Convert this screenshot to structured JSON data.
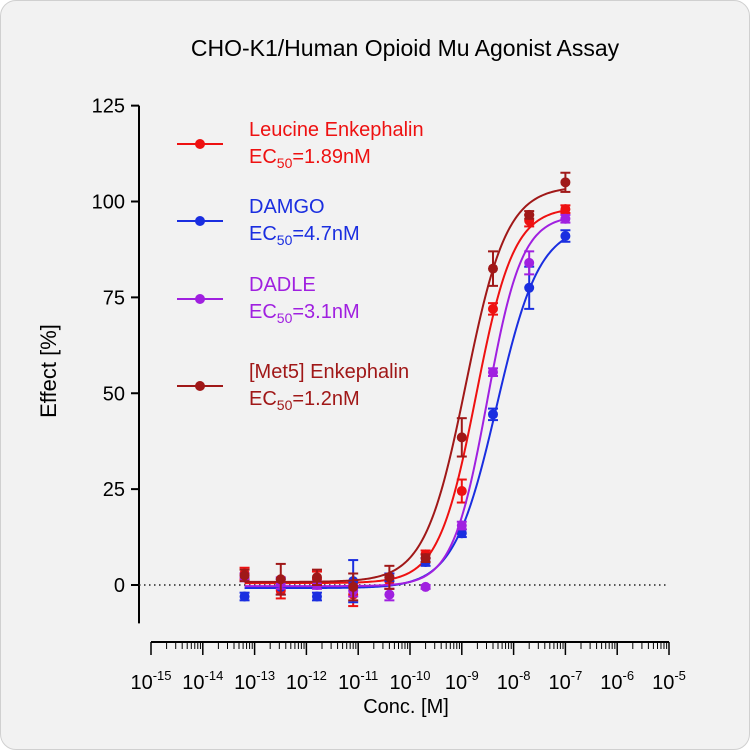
{
  "chart_data": {
    "type": "scatter",
    "title": "CHO-K1/Human Opioid Mu Agonist Assay",
    "xlabel": "Conc. [M]",
    "ylabel": "Effect  [%]",
    "x_scale": "log",
    "xlim": [
      1e-15,
      1e-05
    ],
    "ylim": [
      -10,
      125
    ],
    "y_ticks": [
      0,
      25,
      50,
      75,
      100,
      125
    ],
    "x_ticks": [
      {
        "base": "10",
        "exp": "-15",
        "value": 1e-15
      },
      {
        "base": "10",
        "exp": "-14",
        "value": 1e-14
      },
      {
        "base": "10",
        "exp": "-13",
        "value": 1e-13
      },
      {
        "base": "10",
        "exp": "-12",
        "value": 1e-12
      },
      {
        "base": "10",
        "exp": "-11",
        "value": 1e-11
      },
      {
        "base": "10",
        "exp": "-10",
        "value": 1e-10
      },
      {
        "base": "10",
        "exp": "-9",
        "value": 1e-09
      },
      {
        "base": "10",
        "exp": "-8",
        "value": 1e-08
      },
      {
        "base": "10",
        "exp": "-7",
        "value": 1e-07
      },
      {
        "base": "10",
        "exp": "-6",
        "value": 1e-06
      },
      {
        "base": "10",
        "exp": "-5",
        "value": 1e-05
      }
    ],
    "reference_line": {
      "y": 0,
      "style": "dotted"
    },
    "legend_position": "top-left",
    "grid": false,
    "series": [
      {
        "name": "Leucine Enkephalin",
        "ec50_prefix": "EC",
        "ec50_sub": "50",
        "ec50_value": "=1.89nM",
        "color": "#ee1111",
        "fit": {
          "bottom": 0.5,
          "top": 98.5,
          "ec50": 1.89e-09,
          "hill": 1.2
        },
        "points": [
          {
            "x": 6.4e-14,
            "y": 3.0,
            "err": 1.5
          },
          {
            "x": 3.2e-13,
            "y": -1.5,
            "err": 2.0
          },
          {
            "x": 1.6e-12,
            "y": 1.5,
            "err": 2.0
          },
          {
            "x": 8e-12,
            "y": -2.5,
            "err": 3.0
          },
          {
            "x": 4e-11,
            "y": 1.0,
            "err": 2.0
          },
          {
            "x": 2e-10,
            "y": 8.0,
            "err": 1.0
          },
          {
            "x": 1e-09,
            "y": 24.5,
            "err": 3.0
          },
          {
            "x": 4e-09,
            "y": 72.0,
            "err": 1.5
          },
          {
            "x": 2e-08,
            "y": 95.0,
            "err": 1.5
          },
          {
            "x": 1e-07,
            "y": 98.0,
            "err": 1.0
          }
        ]
      },
      {
        "name": "DAMGO",
        "ec50_prefix": "EC",
        "ec50_sub": "50",
        "ec50_value": "=4.7nM",
        "color": "#1a2ee0",
        "fit": {
          "bottom": -0.8,
          "top": 94.0,
          "ec50": 4.7e-09,
          "hill": 1.05
        },
        "points": [
          {
            "x": 6.4e-14,
            "y": -3.0,
            "err": 1.0
          },
          {
            "x": 3.2e-13,
            "y": -0.5,
            "err": 2.0
          },
          {
            "x": 1.6e-12,
            "y": -3.0,
            "err": 1.0
          },
          {
            "x": 8e-12,
            "y": 1.0,
            "err": 5.5
          },
          {
            "x": 4e-11,
            "y": 2.0,
            "err": 1.0
          },
          {
            "x": 2e-10,
            "y": 6.0,
            "err": 1.0
          },
          {
            "x": 1e-09,
            "y": 13.5,
            "err": 1.0
          },
          {
            "x": 4e-09,
            "y": 44.5,
            "err": 1.5
          },
          {
            "x": 2e-08,
            "y": 77.5,
            "err": 5.5
          },
          {
            "x": 1e-07,
            "y": 91.0,
            "err": 1.5
          }
        ]
      },
      {
        "name": "DADLE",
        "ec50_prefix": "EC",
        "ec50_sub": "50",
        "ec50_value": "=3.1nM",
        "color": "#a020e0",
        "fit": {
          "bottom": -0.3,
          "top": 96.5,
          "ec50": 3.1e-09,
          "hill": 1.3
        },
        "points": [
          {
            "x": 6.4e-14,
            "y": 2.0,
            "err": 1.0
          },
          {
            "x": 3.2e-13,
            "y": 0.5,
            "err": 1.5
          },
          {
            "x": 1.6e-12,
            "y": 0.0,
            "err": 1.0
          },
          {
            "x": 8e-12,
            "y": -1.5,
            "err": 1.5
          },
          {
            "x": 4e-11,
            "y": -2.5,
            "err": 1.5
          },
          {
            "x": 2e-10,
            "y": -0.5,
            "err": 0.5
          },
          {
            "x": 1e-09,
            "y": 15.5,
            "err": 1.0
          },
          {
            "x": 4e-09,
            "y": 55.5,
            "err": 1.0
          },
          {
            "x": 2e-08,
            "y": 84.0,
            "err": 3.0
          },
          {
            "x": 1e-07,
            "y": 95.5,
            "err": 1.0
          }
        ]
      },
      {
        "name": "[Met5] Enkephalin",
        "ec50_prefix": "EC",
        "ec50_sub": "50",
        "ec50_value": "=1.2nM",
        "color": "#a01818",
        "fit": {
          "bottom": 0.8,
          "top": 104.0,
          "ec50": 1.2e-09,
          "hill": 1.1
        },
        "points": [
          {
            "x": 6.4e-14,
            "y": 2.5,
            "err": 1.5
          },
          {
            "x": 3.2e-13,
            "y": 1.5,
            "err": 4.0
          },
          {
            "x": 1.6e-12,
            "y": 2.0,
            "err": 2.0
          },
          {
            "x": 8e-12,
            "y": -0.5,
            "err": 3.5
          },
          {
            "x": 4e-11,
            "y": 2.0,
            "err": 3.0
          },
          {
            "x": 2e-10,
            "y": 7.0,
            "err": 1.0
          },
          {
            "x": 1e-09,
            "y": 38.5,
            "err": 5.0
          },
          {
            "x": 4e-09,
            "y": 82.5,
            "err": 4.5
          },
          {
            "x": 2e-08,
            "y": 96.5,
            "err": 1.0
          },
          {
            "x": 1e-07,
            "y": 105.0,
            "err": 2.5
          }
        ]
      }
    ]
  }
}
